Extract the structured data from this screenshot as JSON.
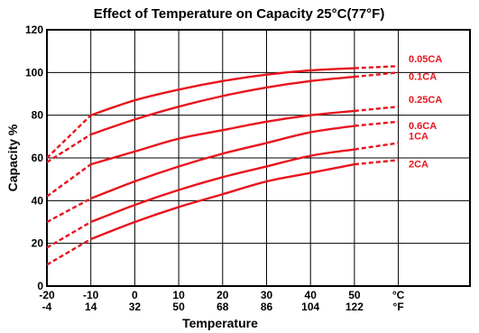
{
  "chart_data": {
    "type": "line",
    "title": "Effect of Temperature on Capacity  25°C(77°F)",
    "xlabel": "Temperature",
    "ylabel": "Capacity %",
    "x_tick_labels_c": [
      "-20",
      "-10",
      "0",
      "10",
      "20",
      "30",
      "40",
      "50",
      "°C"
    ],
    "x_tick_labels_f": [
      "-4",
      "14",
      "32",
      "50",
      "68",
      "86",
      "104",
      "122",
      "°F"
    ],
    "y_ticks": [
      0,
      20,
      40,
      60,
      80,
      100,
      120
    ],
    "xlim": [
      -20,
      85
    ],
    "ylim": [
      0,
      120
    ],
    "grid": true,
    "line_color": "#e8141e",
    "series": [
      {
        "name": "0.05CA",
        "x": [
          -20,
          -10,
          0,
          10,
          20,
          30,
          40,
          50,
          60
        ],
        "y": [
          60,
          80,
          87,
          92,
          96,
          99,
          101,
          102,
          103
        ],
        "dashed_x": [
          [
            -20,
            -10
          ],
          [
            50,
            60
          ]
        ]
      },
      {
        "name": "0.1CA",
        "x": [
          -20,
          -10,
          0,
          10,
          20,
          30,
          40,
          50,
          60
        ],
        "y": [
          58,
          71,
          78,
          84,
          89,
          93,
          96,
          98,
          100
        ],
        "dashed_x": [
          [
            -20,
            -10
          ],
          [
            50,
            60
          ]
        ]
      },
      {
        "name": "0.25CA",
        "x": [
          -20,
          -10,
          0,
          10,
          20,
          30,
          40,
          50,
          60
        ],
        "y": [
          42,
          57,
          63,
          69,
          73,
          77,
          80,
          82,
          84
        ],
        "dashed_x": [
          [
            -20,
            -10
          ],
          [
            50,
            60
          ]
        ]
      },
      {
        "name": "0.6CA",
        "x": [
          -20,
          -10,
          0,
          10,
          20,
          30,
          40,
          50,
          60
        ],
        "y": [
          30,
          41,
          49,
          56,
          62,
          67,
          72,
          75,
          77
        ],
        "dashed_x": [
          [
            -20,
            -10
          ],
          [
            50,
            60
          ]
        ]
      },
      {
        "name": "1CA",
        "x": [
          -20,
          -10,
          0,
          10,
          20,
          30,
          40,
          50,
          60
        ],
        "y": [
          18,
          30,
          38,
          45,
          51,
          56,
          61,
          64,
          67
        ],
        "dashed_x": [
          [
            -20,
            -10
          ],
          [
            50,
            60
          ]
        ]
      },
      {
        "name": "2CA",
        "x": [
          -20,
          -10,
          0,
          10,
          20,
          30,
          40,
          50,
          60
        ],
        "y": [
          10,
          22,
          30,
          37,
          43,
          49,
          53,
          57,
          59
        ],
        "dashed_x": [
          [
            -20,
            -10
          ],
          [
            50,
            60
          ]
        ]
      }
    ]
  }
}
